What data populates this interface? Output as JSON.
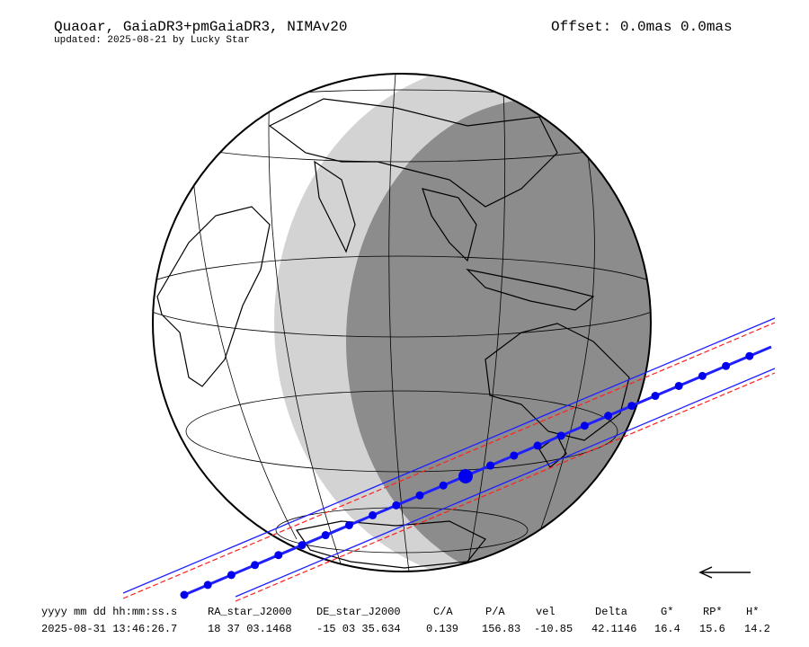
{
  "header": {
    "title": "Quaoar, GaiaDR3+pmGaiaDR3, NIMAv20",
    "subtitle": "updated: 2025-08-21 by Lucky Star",
    "offset": "Offset: 0.0mas 0.0mas"
  },
  "table": {
    "columns": [
      "yyyy mm dd hh:mm:ss.s",
      "RA_star_J2000",
      "DE_star_J2000",
      "C/A",
      "P/A",
      "vel",
      "Delta",
      "G*",
      "RP*",
      "H*"
    ],
    "rows": [
      [
        "2025-08-31 13:46:26.7",
        "18 37 03.1468",
        "-15 03 35.634",
        "0.139",
        "156.83",
        "-10.85",
        "42.1146",
        "16.4",
        "15.6",
        "14.2"
      ]
    ]
  }
}
